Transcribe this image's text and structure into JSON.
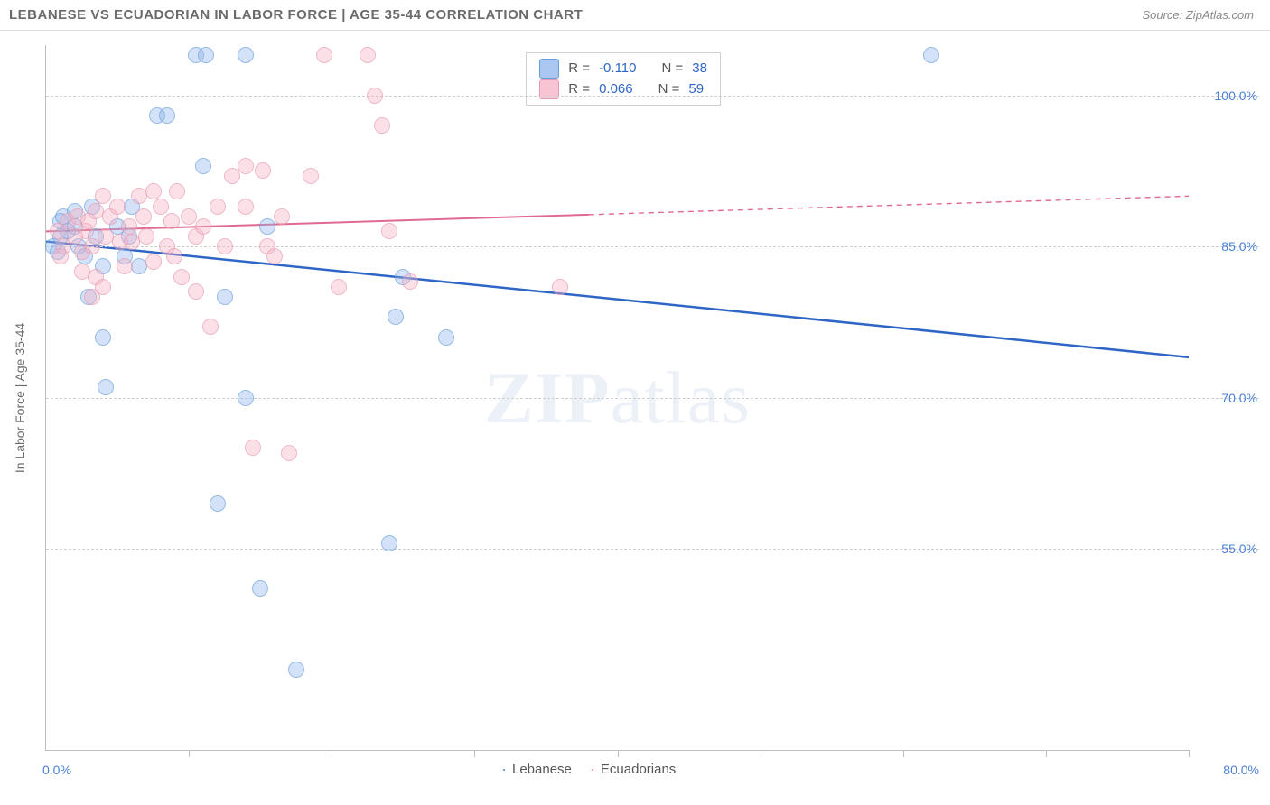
{
  "header": {
    "title": "LEBANESE VS ECUADORIAN IN LABOR FORCE | AGE 35-44 CORRELATION CHART",
    "source": "Source: ZipAtlas.com"
  },
  "watermark": {
    "bold": "ZIP",
    "rest": "atlas"
  },
  "chart": {
    "type": "scatter",
    "y_axis_label": "In Labor Force | Age 35-44",
    "background_color": "#ffffff",
    "grid_color": "#cfcfcf",
    "axis_color": "#bdbdbd",
    "xlim": [
      0,
      80
    ],
    "ylim": [
      35,
      105
    ],
    "y_ticks": [
      55.0,
      70.0,
      85.0,
      100.0
    ],
    "y_tick_labels": [
      "55.0%",
      "70.0%",
      "85.0%",
      "100.0%"
    ],
    "x_ticks": [
      10,
      20,
      30,
      40,
      50,
      60,
      70,
      80
    ],
    "x_label_min": "0.0%",
    "x_label_max": "80.0%",
    "marker_size": 18,
    "marker_opacity": 0.7,
    "series": [
      {
        "name": "Lebanese",
        "color_fill": "rgba(140,180,235,0.55)",
        "color_stroke": "#6b9ed9",
        "r_value": "-0.110",
        "n_value": "38",
        "trend": {
          "x1": 0,
          "y1": 85.5,
          "x2": 80,
          "y2": 74.0,
          "solid_until_x": 80,
          "color": "#2f66c6",
          "width": 2.5
        },
        "points": [
          {
            "x": 0.5,
            "y": 85
          },
          {
            "x": 1.0,
            "y": 86
          },
          {
            "x": 1.0,
            "y": 87.5
          },
          {
            "x": 0.8,
            "y": 84.5
          },
          {
            "x": 1.5,
            "y": 86.5
          },
          {
            "x": 1.2,
            "y": 88
          },
          {
            "x": 2.0,
            "y": 87
          },
          {
            "x": 2.3,
            "y": 85
          },
          {
            "x": 2.0,
            "y": 88.5
          },
          {
            "x": 2.7,
            "y": 84
          },
          {
            "x": 3.0,
            "y": 80
          },
          {
            "x": 3.5,
            "y": 86
          },
          {
            "x": 3.2,
            "y": 89
          },
          {
            "x": 4.0,
            "y": 83
          },
          {
            "x": 4.0,
            "y": 76
          },
          {
            "x": 4.2,
            "y": 71
          },
          {
            "x": 5.0,
            "y": 87
          },
          {
            "x": 5.5,
            "y": 84
          },
          {
            "x": 6.0,
            "y": 89
          },
          {
            "x": 5.8,
            "y": 86
          },
          {
            "x": 6.5,
            "y": 83
          },
          {
            "x": 7.8,
            "y": 98
          },
          {
            "x": 8.5,
            "y": 98
          },
          {
            "x": 10.5,
            "y": 104
          },
          {
            "x": 11.2,
            "y": 104
          },
          {
            "x": 11.0,
            "y": 93
          },
          {
            "x": 12.5,
            "y": 80
          },
          {
            "x": 12.0,
            "y": 59.5
          },
          {
            "x": 14.0,
            "y": 104
          },
          {
            "x": 14.0,
            "y": 70
          },
          {
            "x": 15.5,
            "y": 87
          },
          {
            "x": 15.0,
            "y": 51
          },
          {
            "x": 17.5,
            "y": 43
          },
          {
            "x": 24.5,
            "y": 78
          },
          {
            "x": 25.0,
            "y": 82
          },
          {
            "x": 24.0,
            "y": 55.5
          },
          {
            "x": 28.0,
            "y": 76
          },
          {
            "x": 62.0,
            "y": 104
          }
        ]
      },
      {
        "name": "Ecuadorians",
        "color_fill": "rgba(245,175,195,0.55)",
        "color_stroke": "#e79bb2",
        "r_value": "0.066",
        "n_value": "59",
        "trend": {
          "x1": 0,
          "y1": 86.5,
          "x2": 80,
          "y2": 90.0,
          "solid_until_x": 38,
          "color": "#e06a8f",
          "width": 2,
          "dash": "6,5"
        },
        "points": [
          {
            "x": 0.8,
            "y": 86.5
          },
          {
            "x": 1.2,
            "y": 85
          },
          {
            "x": 1.5,
            "y": 87.5
          },
          {
            "x": 1.0,
            "y": 84
          },
          {
            "x": 2.0,
            "y": 86
          },
          {
            "x": 2.2,
            "y": 88
          },
          {
            "x": 2.5,
            "y": 84.5
          },
          {
            "x": 2.8,
            "y": 86.5
          },
          {
            "x": 2.5,
            "y": 82.5
          },
          {
            "x": 3.0,
            "y": 87.5
          },
          {
            "x": 3.2,
            "y": 85
          },
          {
            "x": 3.5,
            "y": 88.5
          },
          {
            "x": 3.5,
            "y": 82
          },
          {
            "x": 3.2,
            "y": 80
          },
          {
            "x": 4.0,
            "y": 90
          },
          {
            "x": 4.2,
            "y": 86
          },
          {
            "x": 4.5,
            "y": 88
          },
          {
            "x": 4.0,
            "y": 81
          },
          {
            "x": 5.0,
            "y": 89
          },
          {
            "x": 5.2,
            "y": 85.5
          },
          {
            "x": 5.5,
            "y": 83
          },
          {
            "x": 5.8,
            "y": 87
          },
          {
            "x": 6.5,
            "y": 90
          },
          {
            "x": 6.0,
            "y": 85.5
          },
          {
            "x": 6.8,
            "y": 88
          },
          {
            "x": 7.5,
            "y": 90.5
          },
          {
            "x": 7.0,
            "y": 86
          },
          {
            "x": 7.5,
            "y": 83.5
          },
          {
            "x": 8.0,
            "y": 89
          },
          {
            "x": 8.5,
            "y": 85
          },
          {
            "x": 8.8,
            "y": 87.5
          },
          {
            "x": 9.2,
            "y": 90.5
          },
          {
            "x": 9.0,
            "y": 84
          },
          {
            "x": 9.5,
            "y": 82
          },
          {
            "x": 10.0,
            "y": 88
          },
          {
            "x": 10.5,
            "y": 86
          },
          {
            "x": 10.5,
            "y": 80.5
          },
          {
            "x": 11.0,
            "y": 87
          },
          {
            "x": 11.5,
            "y": 77
          },
          {
            "x": 12.0,
            "y": 89
          },
          {
            "x": 12.5,
            "y": 85
          },
          {
            "x": 13.0,
            "y": 92
          },
          {
            "x": 14.0,
            "y": 93
          },
          {
            "x": 14.0,
            "y": 89
          },
          {
            "x": 15.5,
            "y": 85
          },
          {
            "x": 14.5,
            "y": 65
          },
          {
            "x": 16.0,
            "y": 84
          },
          {
            "x": 15.2,
            "y": 92.5
          },
          {
            "x": 16.5,
            "y": 88
          },
          {
            "x": 17.0,
            "y": 64.5
          },
          {
            "x": 18.5,
            "y": 92
          },
          {
            "x": 19.5,
            "y": 104
          },
          {
            "x": 20.5,
            "y": 81
          },
          {
            "x": 22.5,
            "y": 104
          },
          {
            "x": 23.0,
            "y": 100
          },
          {
            "x": 23.5,
            "y": 97
          },
          {
            "x": 24.0,
            "y": 86.5
          },
          {
            "x": 25.5,
            "y": 81.5
          },
          {
            "x": 36.0,
            "y": 81
          }
        ]
      }
    ],
    "legend_top": {
      "r_label": "R =",
      "n_label": "N ="
    },
    "legend_bottom": {
      "series1": "Lebanese",
      "series2": "Ecuadorians"
    }
  }
}
